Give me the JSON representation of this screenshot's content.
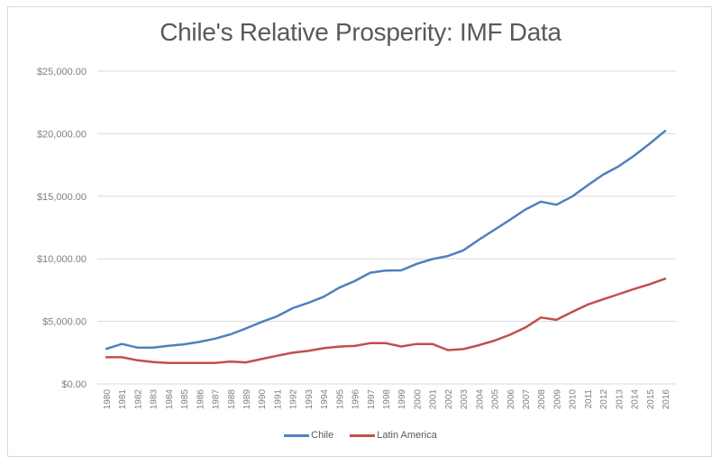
{
  "chart_data": {
    "type": "line",
    "title": "Chile's Relative Prosperity: IMF Data",
    "xlabel": "",
    "ylabel": "",
    "ylim": [
      0,
      25000
    ],
    "y_ticks": [
      0,
      5000,
      10000,
      15000,
      20000,
      25000
    ],
    "y_tick_labels": [
      "$0.00",
      "$5,000.00",
      "$10,000.00",
      "$15,000.00",
      "$20,000.00",
      "$25,000.00"
    ],
    "grid": true,
    "legend_position": "bottom",
    "categories": [
      "1980",
      "1981",
      "1982",
      "1983",
      "1984",
      "1985",
      "1986",
      "1987",
      "1988",
      "1989",
      "1990",
      "1991",
      "1992",
      "1993",
      "1994",
      "1995",
      "1996",
      "1997",
      "1998",
      "1999",
      "2000",
      "2001",
      "2002",
      "2003",
      "2004",
      "2005",
      "2006",
      "2007",
      "2008",
      "2009",
      "2010",
      "2011",
      "2012",
      "2013",
      "2014",
      "2015",
      "2016"
    ],
    "series": [
      {
        "name": "Chile",
        "color": "#4f81bd",
        "values": [
          2800,
          3190,
          2900,
          2900,
          3050,
          3160,
          3360,
          3620,
          3960,
          4440,
          4950,
          5400,
          6050,
          6480,
          6970,
          7690,
          8220,
          8890,
          9060,
          9080,
          9600,
          9980,
          10220,
          10680,
          11520,
          12320,
          13120,
          13940,
          14570,
          14320,
          14970,
          15870,
          16720,
          17390,
          18240,
          19200,
          20220
        ]
      },
      {
        "name": "Latin America",
        "color": "#c0504d",
        "values": [
          2130,
          2130,
          1890,
          1750,
          1680,
          1680,
          1680,
          1680,
          1790,
          1720,
          1990,
          2250,
          2490,
          2640,
          2850,
          2980,
          3030,
          3260,
          3260,
          2990,
          3190,
          3190,
          2700,
          2780,
          3090,
          3460,
          3930,
          4510,
          5310,
          5120,
          5750,
          6330,
          6760,
          7170,
          7590,
          7970,
          8410
        ]
      }
    ]
  }
}
